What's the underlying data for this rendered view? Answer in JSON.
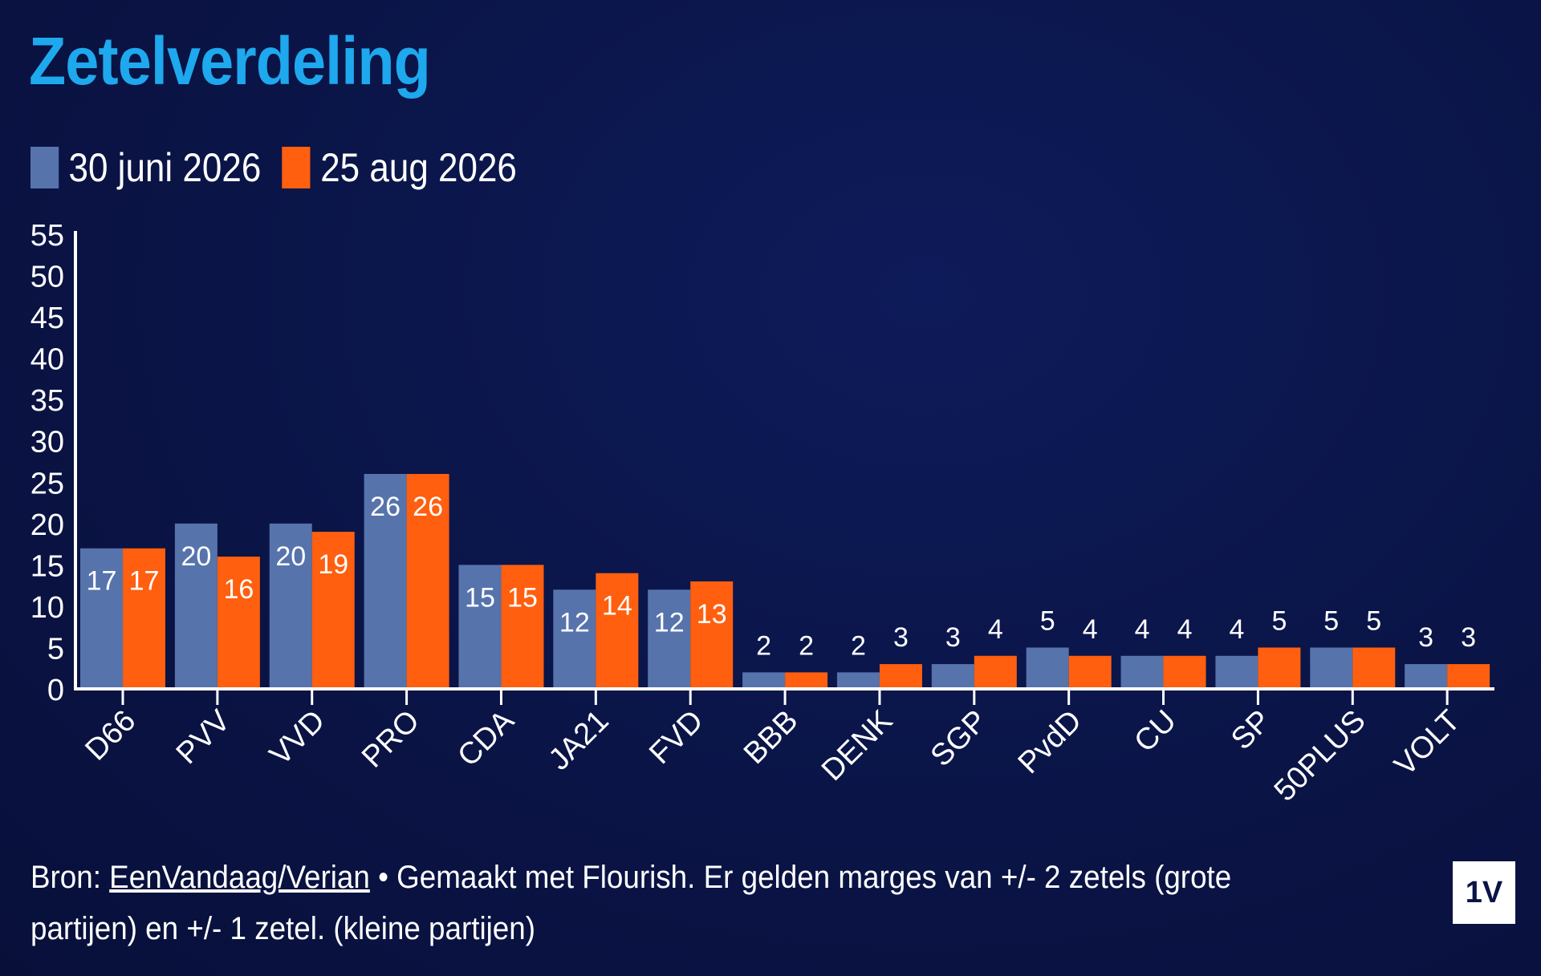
{
  "title": "Zetelverdeling",
  "legend": [
    {
      "label": "30 juni 2026",
      "color": "#5673ac"
    },
    {
      "label": "25 aug 2026",
      "color": "#ff5f0f"
    }
  ],
  "chart_data": {
    "type": "bar",
    "categories": [
      "D66",
      "PVV",
      "VVD",
      "PRO",
      "CDA",
      "JA21",
      "FVD",
      "BBB",
      "DENK",
      "SGP",
      "PvdD",
      "CU",
      "SP",
      "50PLUS",
      "VOLT"
    ],
    "series": [
      {
        "name": "30 juni 2026",
        "color": "#5673ac",
        "values": [
          17,
          20,
          20,
          26,
          15,
          12,
          12,
          2,
          2,
          3,
          5,
          4,
          4,
          5,
          3
        ]
      },
      {
        "name": "25 aug 2026",
        "color": "#ff5f0f",
        "values": [
          17,
          16,
          19,
          26,
          15,
          14,
          13,
          2,
          3,
          4,
          4,
          4,
          5,
          5,
          3
        ]
      }
    ],
    "yticks": [
      0,
      5,
      10,
      15,
      20,
      25,
      30,
      35,
      40,
      45,
      50,
      55
    ],
    "ylim": [
      0,
      55
    ],
    "grid": false,
    "legend_position": "top-left"
  },
  "footer": {
    "prefix": "Bron: ",
    "link": "EenVandaag/Verian",
    "text": " • Gemaakt met Flourish. Er gelden marges van +/- 2 zetels (grote partijen) en +/- 1 zetel. (kleine partijen)"
  },
  "logo": "1V"
}
